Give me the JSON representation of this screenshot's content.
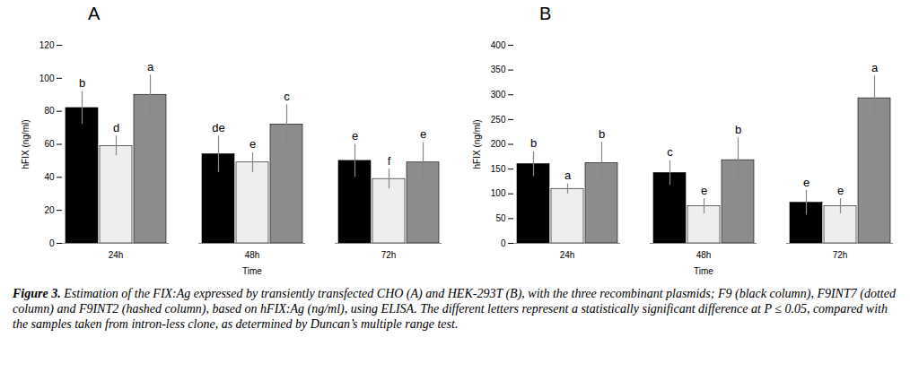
{
  "chart_data": [
    {
      "type": "bar",
      "panel_label": "A",
      "xlabel": "Time",
      "ylabel": "hFIX (ng/ml)",
      "categories": [
        "24h",
        "48h",
        "72h"
      ],
      "ylim": [
        0,
        120
      ],
      "yticks": [
        0,
        20,
        40,
        60,
        80,
        100,
        120
      ],
      "grid": false,
      "series": [
        {
          "name": "F9",
          "color": "#000000",
          "values": [
            82,
            54,
            50
          ],
          "errors": [
            10,
            11,
            10
          ],
          "significance_letters": [
            "b",
            "de",
            "e"
          ]
        },
        {
          "name": "F9INT7",
          "color": "#eeeeee",
          "values": [
            59,
            49,
            39
          ],
          "errors": [
            6,
            6,
            6
          ],
          "significance_letters": [
            "d",
            "e",
            "f"
          ]
        },
        {
          "name": "F9INT2",
          "color": "#8c8c8c",
          "values": [
            90,
            72,
            49
          ],
          "errors": [
            12,
            12,
            12
          ],
          "significance_letters": [
            "a",
            "c",
            "e"
          ]
        }
      ]
    },
    {
      "type": "bar",
      "panel_label": "B",
      "xlabel": "Time",
      "ylabel": "hFIX (ng/ml)",
      "categories": [
        "24h",
        "48h",
        "72h"
      ],
      "ylim": [
        0,
        400
      ],
      "yticks": [
        0,
        50,
        100,
        150,
        200,
        250,
        300,
        350,
        400
      ],
      "grid": false,
      "series": [
        {
          "name": "F9",
          "color": "#000000",
          "values": [
            160,
            142,
            82
          ],
          "errors": [
            25,
            25,
            25
          ],
          "significance_letters": [
            "b",
            "c",
            "e"
          ]
        },
        {
          "name": "F9INT7",
          "color": "#eeeeee",
          "values": [
            110,
            75,
            75
          ],
          "errors": [
            10,
            15,
            15
          ],
          "significance_letters": [
            "a",
            "e",
            "e"
          ]
        },
        {
          "name": "F9INT2",
          "color": "#8c8c8c",
          "values": [
            162,
            168,
            293
          ],
          "errors": [
            42,
            45,
            45
          ],
          "significance_letters": [
            "b",
            "b",
            "a"
          ]
        }
      ]
    }
  ],
  "caption": {
    "label": "Figure 3.",
    "text": "Estimation of the FIX:Ag expressed by transiently transfected CHO (A) and HEK-293T (B), with the three recombinant plasmids; F9 (black column), F9INT7 (dotted column) and F9INT2 (hashed column), based on hFIX:Ag (ng/ml), using ELISA. The different letters represent a statistically significant difference at P ≤ 0.05, compared with the samples taken from intron-less clone, as determined by Duncan’s multiple range test."
  }
}
